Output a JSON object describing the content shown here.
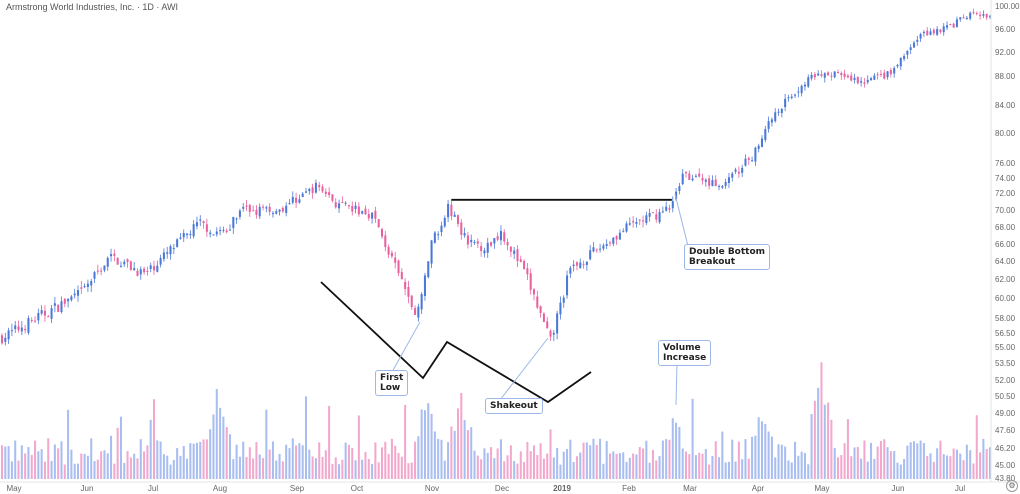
{
  "header": {
    "title": "Armstrong World Industries, Inc. · 1D · AWI"
  },
  "annotations": [
    {
      "id": "first-low",
      "line1": "First",
      "line2": "Low"
    },
    {
      "id": "shakeout",
      "line1": "Shakeout",
      "line2": ""
    },
    {
      "id": "volume-increase",
      "line1": "Volume",
      "line2": "Increase"
    },
    {
      "id": "double-bottom-breakout",
      "line1": "Double Bottom",
      "line2": "Breakout"
    }
  ],
  "colors": {
    "up": "#4a78d8",
    "down": "#e8609e",
    "vol_up": "#a8bdf0",
    "vol_down": "#f2a8cd",
    "pattern_line": "#111111"
  },
  "chart_data": {
    "type": "candlestick",
    "title": "Armstrong World Industries, Inc. · 1D · AWI",
    "y_ticks": [
      "100.00",
      "96.00",
      "92.00",
      "88.00",
      "84.00",
      "80.00",
      "76.00",
      "74.00",
      "72.00",
      "70.00",
      "68.00",
      "66.00",
      "64.00",
      "62.00",
      "60.00",
      "58.00",
      "56.50",
      "55.00",
      "53.50",
      "52.00",
      "50.50",
      "49.00",
      "47.60",
      "46.20",
      "45.00",
      "43.80"
    ],
    "x_ticks": [
      "May",
      "Jun",
      "Jul",
      "Aug",
      "Sep",
      "Oct",
      "Nov",
      "Dec",
      "2019",
      "Feb",
      "Mar",
      "Apr",
      "May",
      "Jun",
      "Jul"
    ],
    "price_keypoints": [
      {
        "t": 0,
        "p": 56.0
      },
      {
        "t": 0.08,
        "p": 60.5
      },
      {
        "t": 0.11,
        "p": 64.5
      },
      {
        "t": 0.145,
        "p": 62.5
      },
      {
        "t": 0.2,
        "p": 68.5
      },
      {
        "t": 0.22,
        "p": 67.0
      },
      {
        "t": 0.245,
        "p": 70.0
      },
      {
        "t": 0.28,
        "p": 70.0
      },
      {
        "t": 0.32,
        "p": 73.0
      },
      {
        "t": 0.34,
        "p": 70.5
      },
      {
        "t": 0.375,
        "p": 69.5
      },
      {
        "t": 0.395,
        "p": 64.0
      },
      {
        "t": 0.42,
        "p": 58.0
      },
      {
        "t": 0.435,
        "p": 66.0
      },
      {
        "t": 0.452,
        "p": 70.5
      },
      {
        "t": 0.47,
        "p": 66.5
      },
      {
        "t": 0.49,
        "p": 65.5
      },
      {
        "t": 0.505,
        "p": 67.5
      },
      {
        "t": 0.53,
        "p": 62.5
      },
      {
        "t": 0.555,
        "p": 55.5
      },
      {
        "t": 0.575,
        "p": 63.0
      },
      {
        "t": 0.61,
        "p": 66.0
      },
      {
        "t": 0.64,
        "p": 68.5
      },
      {
        "t": 0.675,
        "p": 70.0
      },
      {
        "t": 0.69,
        "p": 74.5
      },
      {
        "t": 0.73,
        "p": 73.0
      },
      {
        "t": 0.76,
        "p": 77.0
      },
      {
        "t": 0.78,
        "p": 82.5
      },
      {
        "t": 0.8,
        "p": 85.5
      },
      {
        "t": 0.82,
        "p": 88.0
      },
      {
        "t": 0.84,
        "p": 88.5
      },
      {
        "t": 0.87,
        "p": 87.0
      },
      {
        "t": 0.9,
        "p": 88.5
      },
      {
        "t": 0.93,
        "p": 95.0
      },
      {
        "t": 0.96,
        "p": 96.5
      },
      {
        "t": 0.98,
        "p": 98.5
      },
      {
        "t": 1.0,
        "p": 98.0
      }
    ],
    "volume_spikes": [
      {
        "t": 0.22,
        "level": 0.85
      },
      {
        "t": 0.43,
        "level": 0.75
      },
      {
        "t": 0.465,
        "level": 0.8
      },
      {
        "t": 0.68,
        "level": 0.55
      },
      {
        "t": 0.77,
        "level": 0.7
      },
      {
        "t": 0.83,
        "level": 1.0
      }
    ],
    "pattern": {
      "resistance_price": 71.2,
      "neckline_start_t": 0.455,
      "neckline_end_t": 0.678
    }
  }
}
